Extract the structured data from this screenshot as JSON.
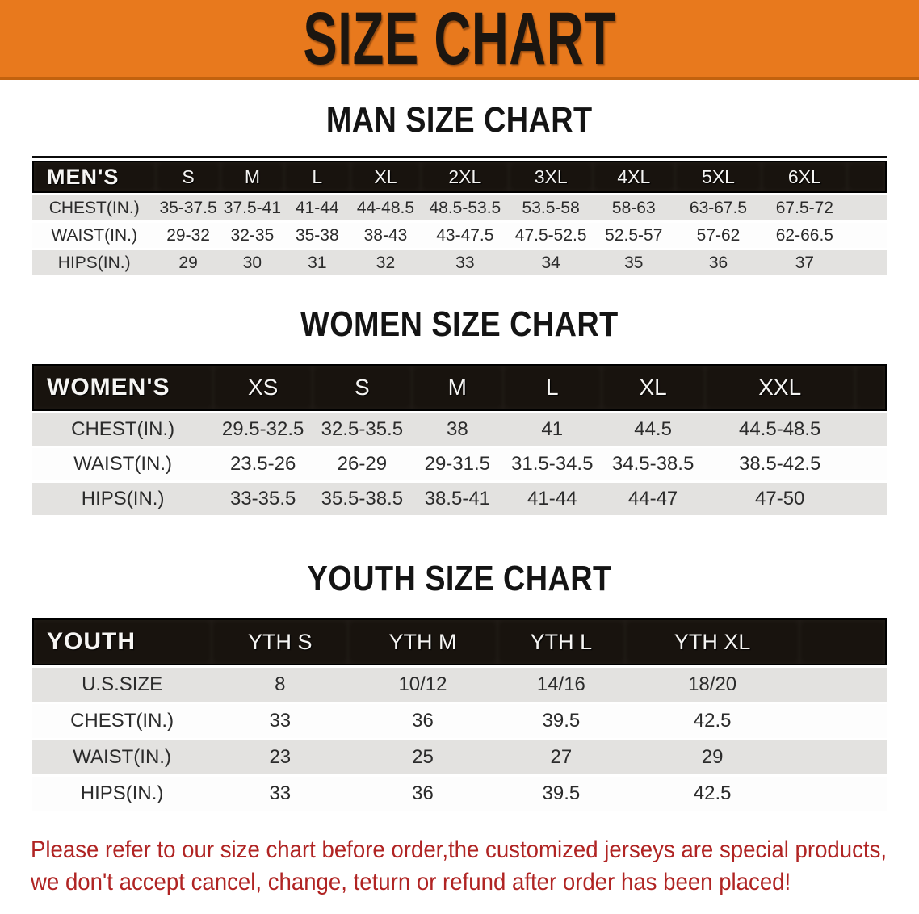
{
  "banner": {
    "title": "SIZE CHART"
  },
  "sections": {
    "men": {
      "heading": "MAN SIZE CHART",
      "table": {
        "corner": "MEN'S",
        "columns": [
          "S",
          "M",
          "L",
          "XL",
          "2XL",
          "3XL",
          "4XL",
          "5XL",
          "6XL"
        ],
        "rows": [
          {
            "label": "CHEST(IN.)",
            "values": [
              "35-37.5",
              "37.5-41",
              "41-44",
              "44-48.5",
              "48.5-53.5",
              "53.5-58",
              "58-63",
              "63-67.5",
              "67.5-72"
            ]
          },
          {
            "label": "WAIST(IN.)",
            "values": [
              "29-32",
              "32-35",
              "35-38",
              "38-43",
              "43-47.5",
              "47.5-52.5",
              "52.5-57",
              "57-62",
              "62-66.5"
            ]
          },
          {
            "label": "HIPS(IN.)",
            "values": [
              "29",
              "30",
              "31",
              "32",
              "33",
              "34",
              "35",
              "36",
              "37"
            ]
          }
        ]
      }
    },
    "women": {
      "heading": "WOMEN SIZE CHART",
      "table": {
        "corner": "WOMEN'S",
        "columns": [
          "XS",
          "S",
          "M",
          "L",
          "XL",
          "XXL"
        ],
        "rows": [
          {
            "label": "CHEST(IN.)",
            "values": [
              "29.5-32.5",
              "32.5-35.5",
              "38",
              "41",
              "44.5",
              "44.5-48.5"
            ]
          },
          {
            "label": "WAIST(IN.)",
            "values": [
              "23.5-26",
              "26-29",
              "29-31.5",
              "31.5-34.5",
              "34.5-38.5",
              "38.5-42.5"
            ]
          },
          {
            "label": "HIPS(IN.)",
            "values": [
              "33-35.5",
              "35.5-38.5",
              "38.5-41",
              "41-44",
              "44-47",
              "47-50"
            ]
          }
        ]
      }
    },
    "youth": {
      "heading": "YOUTH SIZE CHART",
      "table": {
        "corner": "YOUTH",
        "columns": [
          "YTH S",
          "YTH M",
          "YTH L",
          "YTH XL"
        ],
        "rows": [
          {
            "label": "U.S.SIZE",
            "values": [
              "8",
              "10/12",
              "14/16",
              "18/20"
            ]
          },
          {
            "label": "CHEST(IN.)",
            "values": [
              "33",
              "36",
              "39.5",
              "42.5"
            ]
          },
          {
            "label": "WAIST(IN.)",
            "values": [
              "23",
              "25",
              "27",
              "29"
            ]
          },
          {
            "label": "HIPS(IN.)",
            "values": [
              "33",
              "36",
              "39.5",
              "42.5"
            ]
          }
        ]
      }
    }
  },
  "disclaimer": {
    "line1": "Please refer to our size chart before order,the customized jerseys are special products,",
    "line2": "we don't accept cancel, change, teturn or refund after order has been placed!"
  },
  "colors": {
    "banner_bg": "#E8791D",
    "banner_border": "#C2620E",
    "header_bar": "#18130E",
    "row_gray": "#E3E2E0",
    "disclaimer_red": "#B02423"
  }
}
